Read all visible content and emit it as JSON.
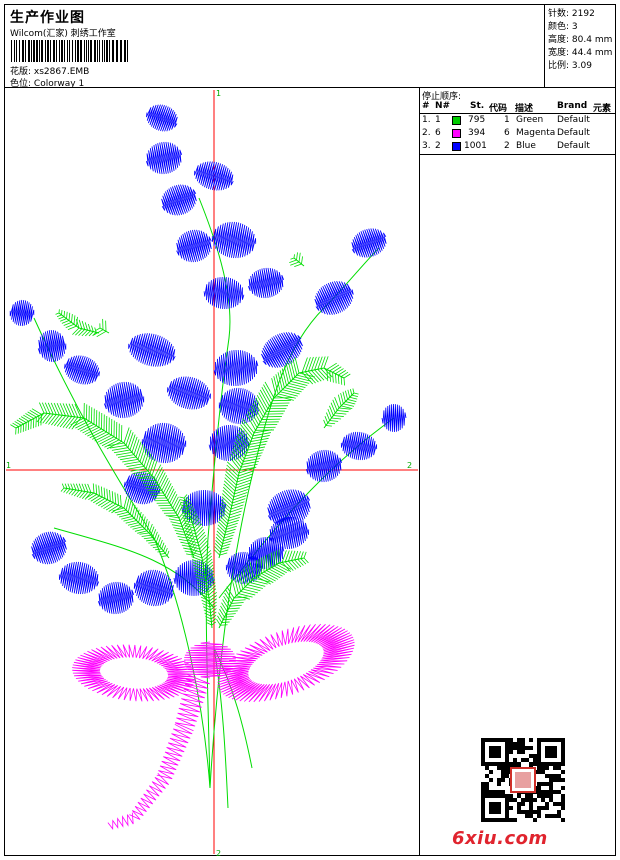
{
  "header": {
    "title": "生产作业图",
    "studio": "Wilcom(汇家) 刺绣工作室",
    "design_label": "花版:",
    "design_file": "xs2867.EMB",
    "colorway_label": "色位:",
    "colorway": "Colorway 1"
  },
  "stats": [
    {
      "label": "针数:",
      "value": "2192"
    },
    {
      "label": "颜色:",
      "value": "3"
    },
    {
      "label": "高度:",
      "value": "80.4 mm"
    },
    {
      "label": "宽度:",
      "value": "44.4 mm"
    },
    {
      "label": "比例:",
      "value": "3.09"
    }
  ],
  "stop_sequence": {
    "title": "停止顺序:",
    "headers": {
      "num": "#",
      "n": "N#",
      "st": "St.",
      "code": "代码",
      "desc": "描述",
      "brand": "Brand",
      "elem": "元素"
    },
    "rows": [
      {
        "num": "1.",
        "n": "1",
        "color": "#00cc00",
        "st": "795",
        "code": "1",
        "desc": "Green",
        "brand": "Default"
      },
      {
        "num": "2.",
        "n": "6",
        "color": "#ff00ff",
        "st": "394",
        "code": "6",
        "desc": "Magenta",
        "brand": "Default"
      },
      {
        "num": "3.",
        "n": "2",
        "color": "#0000ff",
        "st": "1001",
        "code": "2",
        "desc": "Blue",
        "brand": "Default"
      }
    ]
  },
  "axes": {
    "top": "1",
    "bottom": "2",
    "left": "1",
    "right": "2"
  },
  "colors": {
    "green": "#00dd00",
    "magenta": "#ff00ff",
    "blue": "#0000ff",
    "axis": "#ff0000"
  },
  "watermark": {
    "text": "6xiu",
    "suffix": ".com"
  }
}
